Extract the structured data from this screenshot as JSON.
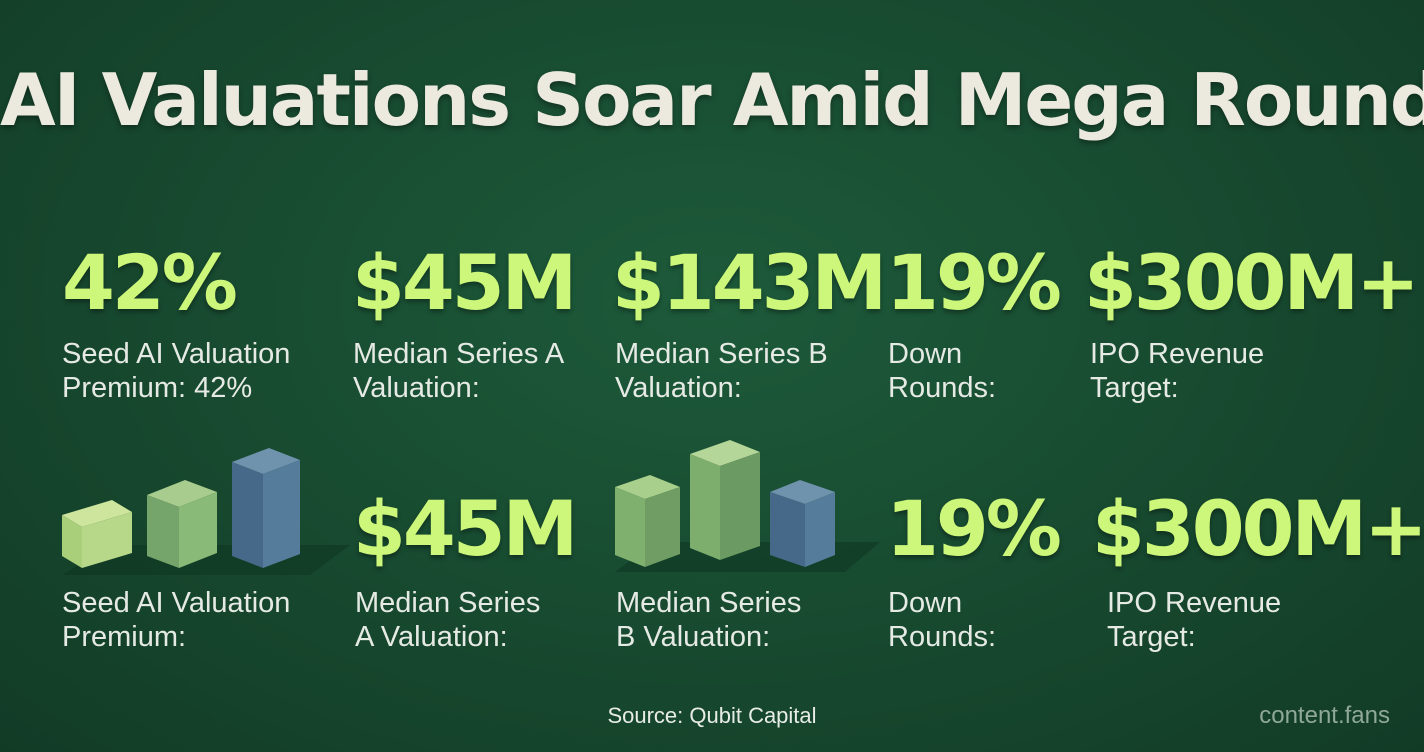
{
  "title": "AI Valuations Soar Amid Mega Rounds",
  "row1": [
    {
      "value": "42%",
      "label_lines": [
        "Seed AI Valuation",
        "Premium: 42%"
      ]
    },
    {
      "value": "$45M",
      "label_lines": [
        "Median Series A",
        "Valuation:"
      ]
    },
    {
      "value": "$143M",
      "label_lines": [
        "Median Series B",
        "Valuation:"
      ]
    },
    {
      "value": "19%",
      "label_lines": [
        "Down",
        "Rounds:"
      ]
    },
    {
      "value": "$300M+",
      "label_lines": [
        "IPO Revenue",
        "Target:"
      ]
    }
  ],
  "row2": [
    {
      "value": "",
      "label_lines": [
        "Seed AI Valuation",
        "Premium:"
      ]
    },
    {
      "value": "$45M",
      "label_lines": [
        "Median Series",
        "A Valuation:"
      ]
    },
    {
      "value": "",
      "label_lines": [
        "Median Series",
        "B Valuation:"
      ]
    },
    {
      "value": "19%",
      "label_lines": [
        "Down",
        "Rounds:"
      ]
    },
    {
      "value": "$300M+",
      "label_lines": [
        "IPO Revenue",
        "Target:"
      ]
    }
  ],
  "source": "Source: Qubit Capital",
  "watermark": "content.fans",
  "colors": {
    "background": "#17492f",
    "accent": "#cdf77a",
    "text": "#e6eae4",
    "cube_light": "#a9cf7a",
    "cube_mid": "#7fae6c",
    "cube_blue": "#4f7493"
  }
}
